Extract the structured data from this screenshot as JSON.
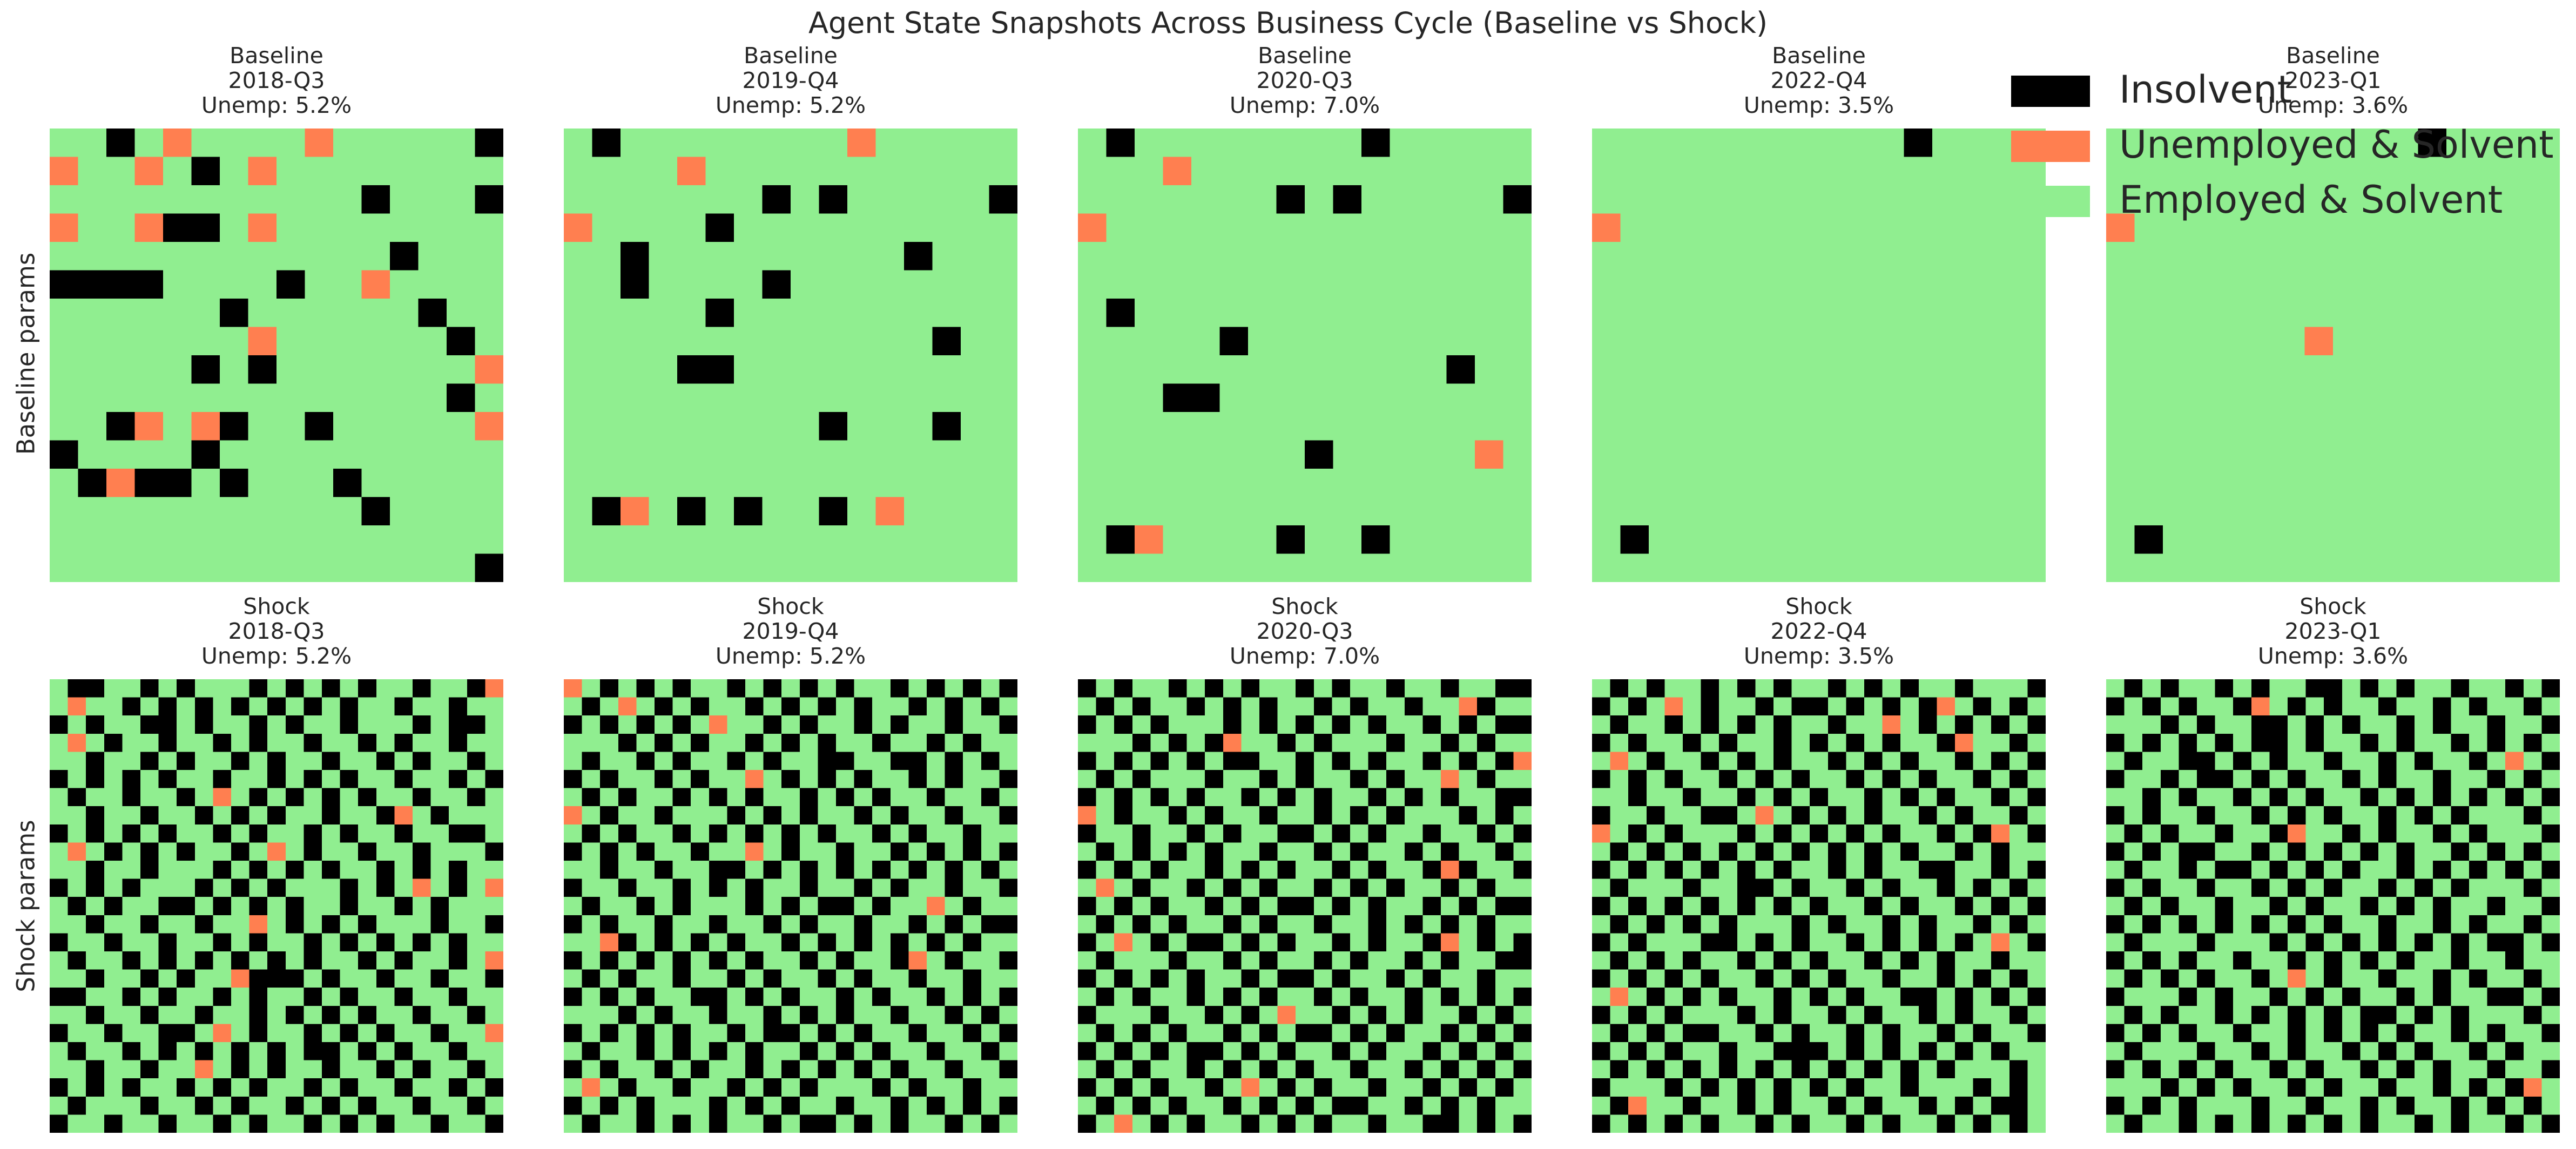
{
  "figure": {
    "suptitle": "Agent State Snapshots Across Business Cycle (Baseline vs Shock)"
  },
  "rows": [
    {
      "label": "Baseline params"
    },
    {
      "label": "Shock params"
    }
  ],
  "legend": {
    "placement": "top-right",
    "items": [
      {
        "label": "Insolvent",
        "color": "#000000"
      },
      {
        "label": "Unemployed & Solvent",
        "color": "#ff7f50"
      },
      {
        "label": "Employed & Solvent",
        "color": "#90ee90"
      }
    ]
  },
  "chart_data": [
    {
      "type": "heatmap",
      "row": 0,
      "col": 0,
      "scenario": "Baseline",
      "period": "2018-Q3",
      "unemp": "Unemp: 5.2%",
      "legend_codes": {
        "0": "Insolvent",
        "1": "Unemployed & Solvent",
        "2": "Employed & Solvent"
      },
      "grid": [
        "2202122221222220",
        "1221202122222222",
        "2222222222202220",
        "1221002122222222",
        "2222222222220222",
        "0000222202212222",
        "2222220222222022",
        "2222222122222202",
        "2222202022222221",
        "2222222222222202",
        "2201210220222221",
        "0222202222222222",
        "2010020222022222",
        "2222222222202222",
        "2222222222222222",
        "2222222222222220"
      ]
    },
    {
      "type": "heatmap",
      "row": 0,
      "col": 1,
      "scenario": "Baseline",
      "period": "2019-Q4",
      "unemp": "Unemp: 5.2%",
      "legend_codes": {
        "0": "Insolvent",
        "1": "Unemployed & Solvent",
        "2": "Employed & Solvent"
      },
      "grid": [
        "2022222222122222",
        "2222122222222222",
        "2222222020222220",
        "1222202222222222",
        "2202222222220222",
        "2202222022222222",
        "2222202222222222",
        "2222222222222022",
        "2222002222222222",
        "2222222222222222",
        "2222222220222022",
        "2222222222222222",
        "2222222222222222",
        "2012020220212222",
        "2222222222222222",
        "2222222222222222"
      ]
    },
    {
      "type": "heatmap",
      "row": 0,
      "col": 2,
      "scenario": "Baseline",
      "period": "2020-Q3",
      "unemp": "Unemp: 7.0%",
      "legend_codes": {
        "0": "Insolvent",
        "1": "Unemployed & Solvent",
        "2": "Employed & Solvent"
      },
      "grid": [
        "2022222222022222",
        "2221222222222222",
        "2222222020222220",
        "1222222222222222",
        "2222222222222222",
        "2222222222222222",
        "2022222222222222",
        "2222202222222222",
        "2222222222222022",
        "2220022222222222",
        "2222222222222222",
        "2222222202222212",
        "2222222222222222",
        "2222222222222222",
        "2012222022022222",
        "2222222222222222"
      ]
    },
    {
      "type": "heatmap",
      "row": 0,
      "col": 3,
      "scenario": "Baseline",
      "period": "2022-Q4",
      "unemp": "Unemp: 3.5%",
      "legend_codes": {
        "0": "Insolvent",
        "1": "Unemployed & Solvent",
        "2": "Employed & Solvent"
      },
      "grid": [
        "2222222222202222",
        "2222222222222222",
        "2222222222222222",
        "1222222222222222",
        "2222222222222222",
        "2222222222222222",
        "2222222222222222",
        "2222222222222222",
        "2222222222222222",
        "2222222222222222",
        "2222222222222222",
        "2222222222222222",
        "2222222222222222",
        "2222222222222222",
        "2022222222222222",
        "2222222222222222"
      ]
    },
    {
      "type": "heatmap",
      "row": 0,
      "col": 4,
      "scenario": "Baseline",
      "period": "2023-Q1",
      "unemp": "Unemp: 3.6%",
      "legend_codes": {
        "0": "Insolvent",
        "1": "Unemployed & Solvent",
        "2": "Employed & Solvent"
      },
      "grid": [
        "2222222222202222",
        "2222222222222222",
        "2222222222222222",
        "1222222222222222",
        "2222222222222222",
        "2222222222222222",
        "2222222222222222",
        "2222222122222222",
        "2222222222222222",
        "2222222222222222",
        "2222222222222222",
        "2222222222222222",
        "2222222222222222",
        "2222222222222222",
        "2022222222222222",
        "2222222222222222"
      ]
    },
    {
      "type": "heatmap",
      "row": 1,
      "col": 0,
      "scenario": "Shock",
      "period": "2018-Q3",
      "unemp": "Unemp: 5.2%",
      "legend_codes": {
        "0": "Insolvent",
        "1": "Unemployed & Solvent",
        "2": "Employed & Solvent"
      },
      "grid": [
        "2002202022202020202202201",
        "2122020202020202022022022",
        "0202200202202022022202002",
        "2120220220202202202022022",
        "2202202022020220220202202",
        "0202020220220202022022020",
        "2022022021202020202202202",
        "2202202202020220220120222",
        "0202020220202202022022002",
        "2120202022021202202202220",
        "2202202220202020220202022",
        "0202022202020222020212021",
        "2020220020202022022020222",
        "2202202202212020202220220",
        "0220220220202202020202022",
        "2022020202020202202022021",
        "2202202022100020220220220",
        "0022020220202202022022022",
        "2202202202202020202202202",
        "0220220021202202020220221",
        "2022020202020200202022022",
        "2202202212020220220202202",
        "0202022020202202022022020",
        "2022202202022020202202202",
        "0220220220202202020220220"
      ]
    },
    {
      "type": "heatmap",
      "row": 1,
      "col": 1,
      "scenario": "Shock",
      "period": "2019-Q4",
      "unemp": "Unemp: 5.2%",
      "legend_codes": {
        "0": "Insolvent",
        "1": "Unemployed & Solvent",
        "2": "Employed & Solvent"
      },
      "grid": [
        "1202020220202020220202020",
        "2021202022020202022020202",
        "0202020212202022020220220",
        "2220202022020202202202022",
        "2022020220202200220020202",
        "0202202022120202022020220",
        "2020220202022020202202202",
        "1202202220202022020220220",
        "2020220202020202202022022",
        "0202022022120220220202020",
        "2202202200202020202020202",
        "0220220202022022020220220",
        "2022020222020200202212022",
        "0202202202202022022020200",
        "2210202020220202020202022",
        "0202020202022020220120220",
        "2020220220202202022022022",
        "0202022002020220202202020",
        "2220202202202020220220202",
        "0202020220200202022022020",
        "2022020202022020202202202",
        "0202202022020202020220220",
        "2120220220202022202022022",
        "0202022202020220220202020",
        "2022020202202002020220202"
      ]
    },
    {
      "type": "heatmap",
      "row": 1,
      "col": 2,
      "scenario": "Shock",
      "period": "2020-Q3",
      "unemp": "Unemp: 7.0%",
      "legend_codes": {
        "0": "Insolvent",
        "1": "Unemployed & Solvent",
        "2": "Employed & Solvent"
      },
      "grid": [
        "0202202020220202202202200",
        "2020220202022020220221022",
        "0202022202020202022020200",
        "2220202012202022202202022",
        "0202020200220202022020201",
        "2020222022020220202212022",
        "0202020220202022020202200",
        "1202202022022020202220202",
        "0220220202200202022022020",
        "2020202022022020220202202",
        "0202022020202202022010220",
        "2120220202022020202202022",
        "0202022020200202022020200",
        "2020202202022022020202022",
        "0212020020202202022012020",
        "2022202202022020220202200",
        "0202020220200202202022022",
        "2020220202022020220202020",
        "0222022020212202020220202",
        "2020202202020020202202020",
        "0202020020202202022020202",
        "2020220202020220220202020",
        "0202022021202022022020202",
        "2020202202020200220202022",
        "0212020220202022022002020"
      ]
    },
    {
      "type": "heatmap",
      "row": 1,
      "col": 3,
      "scenario": "Shock",
      "period": "2022-Q4",
      "unemp": "Unemp: 3.5%",
      "legend_codes": {
        "0": "Insolvent",
        "1": "Unemployed & Solvent",
        "2": "Employed & Solvent"
      },
      "grid": [
        "2020220202022020202202220",
        "0202120220200202020120202",
        "2022020202022022120202020",
        "0202202022020202022012202",
        "2120220202022020202202020",
        "0202022020202202020220202",
        "2202202202020220202022020",
        "0220220021202020220202202",
        "1202022202020202022020120",
        "2020202020202020202202022",
        "0202020202022020220022020",
        "2022202200202202022020202",
        "0202020202020220202202020",
        "2020202022202022020220202",
        "0202220020202202020202120",
        "2020202202020220202022022",
        "0202020220202022022020202",
        "2120202022020202200202020",
        "0202022202022020220202202",
        "2020200220202202022020220",
        "0202022022000202020202022",
        "2020202020202020202022202",
        "0222020202020202202220202",
        "2012202202022020220202002",
        "0202020220202202022020202"
      ]
    },
    {
      "type": "heatmap",
      "row": 1,
      "col": 4,
      "scenario": "Shock",
      "period": "2023-Q1",
      "unemp": "Unemp: 3.6%",
      "legend_codes": {
        "0": "Insolvent",
        "1": "Unemployed & Solvent",
        "2": "Employed & Solvent"
      },
      "grid": [
        "2020220202200202022022020",
        "0202022012020220220202202",
        "2220202200202022020220220",
        "0202020200202202022020202",
        "2022002020220220202202120",
        "0220200202022020220220202",
        "2202022020202202020202020",
        "0202202202020220202022202",
        "2020220220122020220202220",
        "0202002202020202022020202",
        "2022020020202022020202020",
        "0202202202020220202022202",
        "2020220220202202020220220",
        "0202020202020220220202202",
        "2022202220202020202020020",
        "0202022022020202022022022",
        "2020202202120220220202202",
        "0222020220202022020220020",
        "2020220202020200202022202",
        "0202022022020202022020220",
        "2022202202022020202202022",
        "0202020220202202020220220",
        "2220202022020220220202012",
        "0202022202202202022020202",
        "2022020202020202202022020"
      ]
    }
  ]
}
